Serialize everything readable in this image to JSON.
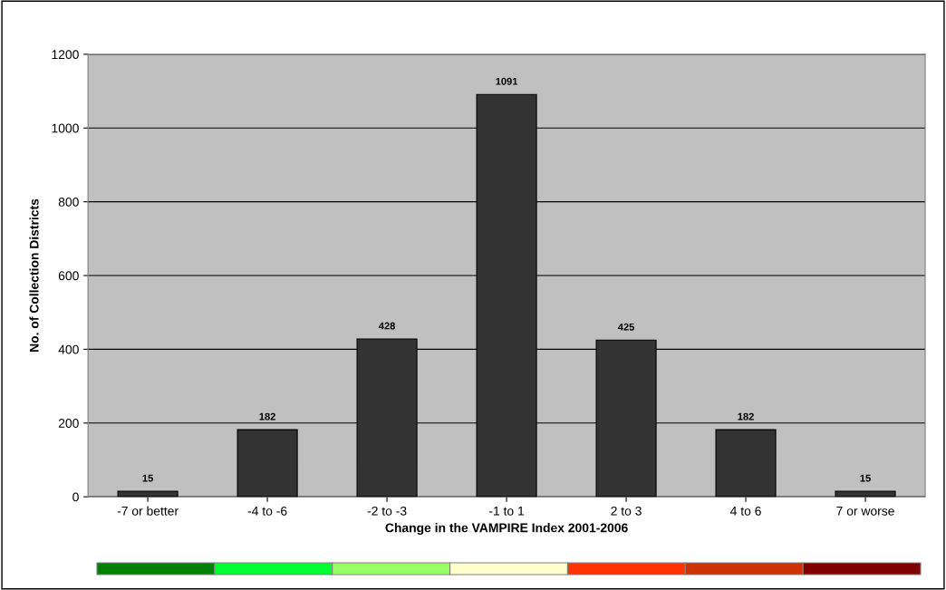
{
  "chart_data": {
    "type": "bar",
    "xlabel": "Change in the VAMPIRE Index 2001-2006",
    "ylabel": "No. of Collection Districts",
    "categories": [
      "-7 or better",
      "-4 to -6",
      "-2 to -3",
      "-1 to 1",
      "2 to 3",
      "4 to 6",
      "7 or worse"
    ],
    "values": [
      15,
      182,
      428,
      1091,
      425,
      182,
      15
    ],
    "color": "#333333",
    "ylim": [
      0,
      1200
    ],
    "yticks": [
      0,
      200,
      400,
      600,
      800,
      1000,
      1200
    ],
    "grid": "y",
    "data_labels": true,
    "legend": false
  }
}
